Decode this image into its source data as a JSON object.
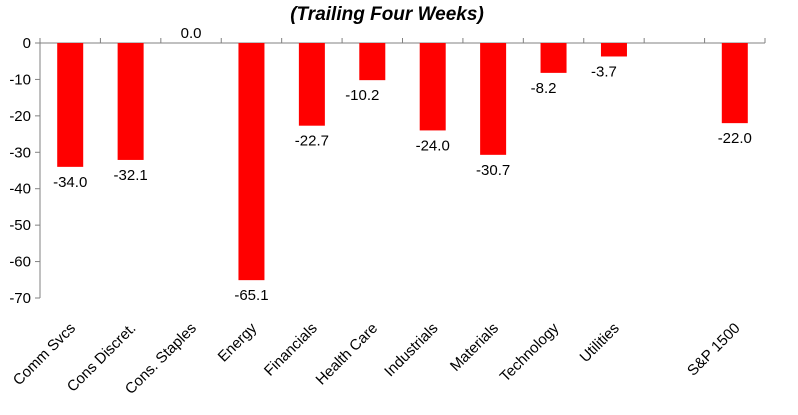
{
  "chart_data": {
    "type": "bar",
    "title": "(Trailing Four Weeks)",
    "categories": [
      "Comm Svcs",
      "Cons Discret.",
      "Cons. Staples",
      "Energy",
      "Financials",
      "Health Care",
      "Industrials",
      "Materials",
      "Technology",
      "Utilities",
      "",
      "S&P 1500"
    ],
    "values": [
      -34.0,
      -32.1,
      0.0,
      -65.1,
      -22.7,
      -10.2,
      -24.0,
      -30.7,
      -8.2,
      -3.7,
      null,
      -22.0
    ],
    "value_labels": [
      "-34.0",
      "-32.1",
      "0.0",
      "-65.1",
      "-22.7",
      "-10.2",
      "-24.0",
      "-30.7",
      "-8.2",
      "-3.7",
      "",
      "-22.0"
    ],
    "ylim": [
      -70,
      0
    ],
    "yticks": [
      0,
      -10,
      -20,
      -30,
      -40,
      -50,
      -60,
      -70
    ],
    "ytick_labels": [
      "0",
      "-10",
      "-20",
      "-30",
      "-40",
      "-50",
      "-60",
      "-70"
    ],
    "xlabel": "",
    "ylabel": "",
    "grid": false,
    "bar_color": "#ff0000"
  }
}
